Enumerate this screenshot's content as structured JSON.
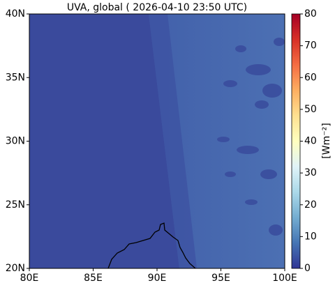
{
  "map": {
    "title": "UVA, global ( 2026-04-10 23:50 UTC)",
    "xlim": [
      80,
      100
    ],
    "xticks": [
      {
        "value": 80,
        "label": "80E"
      },
      {
        "value": 85,
        "label": "85E"
      },
      {
        "value": 90,
        "label": "90E"
      },
      {
        "value": 95,
        "label": "95E"
      },
      {
        "value": 100,
        "label": "100E"
      }
    ],
    "ylim": [
      20,
      40
    ],
    "yticks": [
      {
        "value": 20,
        "label": "20N"
      },
      {
        "value": 25,
        "label": "25N"
      },
      {
        "value": 30,
        "label": "30N"
      },
      {
        "value": 35,
        "label": "35N"
      },
      {
        "value": 40,
        "label": "40N"
      }
    ],
    "colorbar": {
      "label": "[Wm⁻²]",
      "lim": [
        0,
        80
      ],
      "ticks": [
        0,
        10,
        20,
        30,
        40,
        50,
        60,
        70,
        80
      ],
      "colormap": [
        "#313695",
        "#4575b4",
        "#74add1",
        "#abd9e9",
        "#e0f3f8",
        "#ffffbf",
        "#fee090",
        "#fdae61",
        "#f46d43",
        "#d73027",
        "#a50026"
      ]
    }
  }
}
